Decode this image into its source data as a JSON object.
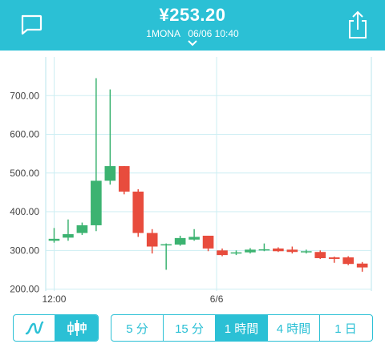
{
  "header": {
    "price": "¥253.20",
    "pair": "1MONA",
    "datetime": "06/06 10:40",
    "chat_icon": "chat-bubble-icon",
    "share_icon": "share-icon",
    "dropdown_icon": "chevron-down-icon"
  },
  "colors": {
    "accent": "#2bc0d5",
    "up": "#3cb371",
    "down": "#e84c3d"
  },
  "chart_data": {
    "type": "candlestick",
    "y_tick_labels": [
      "700.00",
      "600.00",
      "500.00",
      "400.00",
      "300.00",
      "200.00"
    ],
    "y_ticks": [
      700,
      600,
      500,
      400,
      300,
      200
    ],
    "ylim": [
      195,
      800
    ],
    "x_tick_labels": [
      "12:00",
      "6/6"
    ],
    "grid": true,
    "candles": [
      {
        "o": 325,
        "c": 330,
        "h": 358,
        "l": 320
      },
      {
        "o": 333,
        "c": 342,
        "h": 380,
        "l": 325
      },
      {
        "o": 345,
        "c": 365,
        "h": 372,
        "l": 340
      },
      {
        "o": 365,
        "c": 480,
        "h": 745,
        "l": 350
      },
      {
        "o": 480,
        "c": 518,
        "h": 716,
        "l": 470
      },
      {
        "o": 518,
        "c": 452,
        "h": 518,
        "l": 445
      },
      {
        "o": 452,
        "c": 345,
        "h": 458,
        "l": 335
      },
      {
        "o": 345,
        "c": 310,
        "h": 355,
        "l": 292
      },
      {
        "o": 315,
        "c": 316,
        "h": 318,
        "l": 250
      },
      {
        "o": 315,
        "c": 332,
        "h": 338,
        "l": 312
      },
      {
        "o": 328,
        "c": 335,
        "h": 355,
        "l": 325
      },
      {
        "o": 338,
        "c": 305,
        "h": 338,
        "l": 298
      },
      {
        "o": 300,
        "c": 288,
        "h": 305,
        "l": 285
      },
      {
        "o": 292,
        "c": 295,
        "h": 300,
        "l": 288
      },
      {
        "o": 295,
        "c": 302,
        "h": 306,
        "l": 292
      },
      {
        "o": 302,
        "c": 303,
        "h": 318,
        "l": 298
      },
      {
        "o": 305,
        "c": 298,
        "h": 308,
        "l": 296
      },
      {
        "o": 302,
        "c": 296,
        "h": 310,
        "l": 292
      },
      {
        "o": 297,
        "c": 298,
        "h": 302,
        "l": 292
      },
      {
        "o": 296,
        "c": 280,
        "h": 300,
        "l": 278
      },
      {
        "o": 282,
        "c": 278,
        "h": 284,
        "l": 268
      },
      {
        "o": 282,
        "c": 265,
        "h": 285,
        "l": 262
      },
      {
        "o": 266,
        "c": 256,
        "h": 270,
        "l": 245
      }
    ]
  },
  "chart_type_toggle": {
    "line_icon": "line-chart-icon",
    "candle_icon": "candlestick-chart-icon",
    "active": "candle"
  },
  "intervals": [
    {
      "label": "5 分",
      "active": false
    },
    {
      "label": "15 分",
      "active": false
    },
    {
      "label": "1 時間",
      "active": true
    },
    {
      "label": "4 時間",
      "active": false
    },
    {
      "label": "1 日",
      "active": false
    }
  ]
}
